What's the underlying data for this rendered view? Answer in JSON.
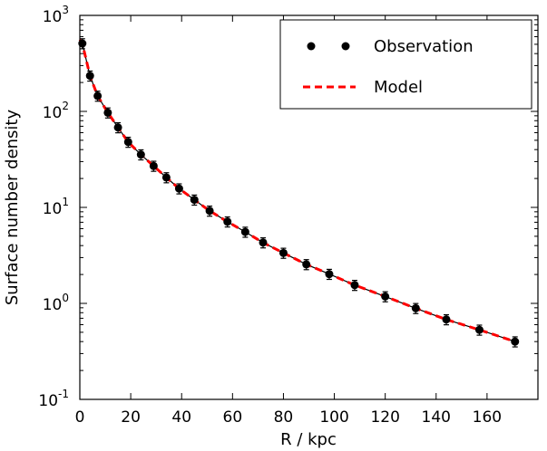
{
  "chart_data": {
    "type": "scatter",
    "title": "",
    "xlabel": "R / kpc",
    "ylabel": "Surface number density",
    "xlim": [
      0,
      180
    ],
    "ylim_log10": [
      -1,
      3
    ],
    "yscale": "log",
    "xticks": [
      0,
      20,
      40,
      60,
      80,
      100,
      120,
      140,
      160
    ],
    "xtick_labels": [
      "0",
      "20",
      "40",
      "60",
      "80",
      "100",
      "120",
      "140",
      "160"
    ],
    "yticks": [
      {
        "value": 0.1,
        "base": "10",
        "exp": "-1"
      },
      {
        "value": 1,
        "base": "10",
        "exp": "0"
      },
      {
        "value": 10,
        "base": "10",
        "exp": "1"
      },
      {
        "value": 100,
        "base": "10",
        "exp": "2"
      },
      {
        "value": 1000,
        "base": "10",
        "exp": "3"
      }
    ],
    "legend_position": "top-right",
    "series": [
      {
        "name": "Observation",
        "kind": "points",
        "color": "#000000",
        "x": [
          1,
          4,
          7,
          11,
          15,
          19,
          24,
          29,
          34,
          39,
          45,
          51,
          58,
          65,
          72,
          80,
          89,
          98,
          108,
          120,
          132,
          144,
          157,
          171
        ],
        "y": [
          510,
          235,
          145,
          97,
          68,
          48,
          35.5,
          27,
          20.5,
          15.7,
          12,
          9.2,
          7.1,
          5.55,
          4.3,
          3.35,
          2.55,
          2.02,
          1.55,
          1.18,
          0.89,
          0.68,
          0.53,
          0.4
        ],
        "yerr_frac": 0.12
      },
      {
        "name": "Model",
        "kind": "dashed-line",
        "color": "#ff0000",
        "x": [
          0,
          1,
          4,
          7,
          11,
          15,
          19,
          24,
          29,
          34,
          39,
          45,
          51,
          58,
          65,
          72,
          80,
          89,
          98,
          108,
          120,
          132,
          144,
          157,
          171
        ],
        "y": [
          560,
          510,
          235,
          145,
          97,
          68,
          48,
          35.5,
          27,
          20.5,
          15.7,
          12,
          9.2,
          7.1,
          5.55,
          4.3,
          3.35,
          2.55,
          2.02,
          1.55,
          1.18,
          0.89,
          0.68,
          0.53,
          0.4
        ]
      }
    ]
  }
}
